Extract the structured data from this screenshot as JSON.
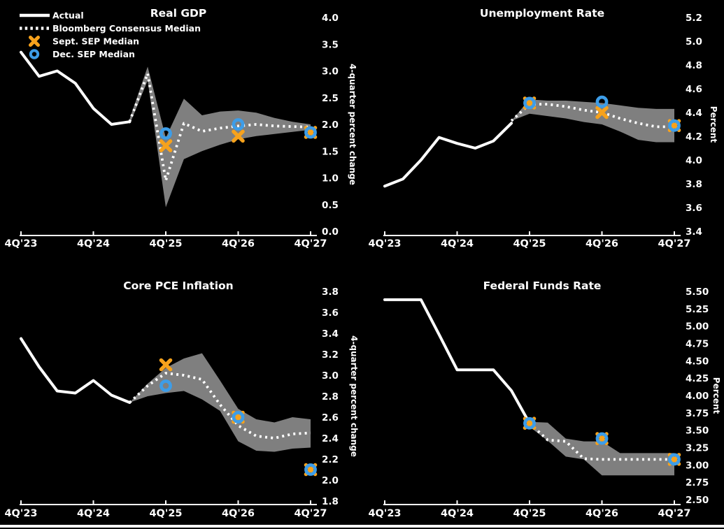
{
  "page": {
    "background": "#000000",
    "border_color": "#fdfdfd"
  },
  "colors": {
    "text": "#ffffff",
    "axis": "#ffffff",
    "actual_line": "#ffffff",
    "consensus_line": "#ffffff",
    "band": "#7f7f7f",
    "sept_marker": "#f7a21c",
    "dec_marker": "#3d9de8"
  },
  "legend": {
    "items": [
      {
        "key": "actual",
        "label": "Actual"
      },
      {
        "key": "consensus",
        "label": "Bloomberg Consensus Median"
      },
      {
        "key": "sept",
        "label": "Sept. SEP Median"
      },
      {
        "key": "dec",
        "label": "Dec. SEP Median"
      }
    ]
  },
  "x_axis": {
    "tick_labels": [
      "4Q'23",
      "4Q'24",
      "4Q'25",
      "4Q'26",
      "4Q'27"
    ],
    "tick_quarters": [
      0,
      4,
      8,
      12,
      16
    ],
    "total_quarters": 16,
    "unit": "quarter index from 4Q'23"
  },
  "chart_data": [
    {
      "type": "line",
      "title": "Real GDP",
      "ylabel": "4-quarter percent change",
      "ylim": [
        0.0,
        4.0
      ],
      "yticks": [
        "4.0",
        "3.5",
        "3.0",
        "2.5",
        "2.0",
        "1.5",
        "1.0",
        "0.5",
        "0.0"
      ],
      "actual": {
        "x": [
          0,
          1,
          2,
          3,
          4,
          5,
          6
        ],
        "y": [
          3.35,
          2.9,
          3.0,
          2.77,
          2.3,
          2.0,
          2.05
        ]
      },
      "consensus": {
        "x": [
          6,
          7,
          8,
          9,
          10,
          11,
          12,
          13,
          14,
          15,
          16
        ],
        "y": [
          2.05,
          2.95,
          0.95,
          2.02,
          1.87,
          1.93,
          1.97,
          2.0,
          1.97,
          1.96,
          1.95
        ]
      },
      "band": {
        "x": [
          6,
          7,
          8,
          9,
          10,
          11,
          12,
          13,
          14,
          15,
          16
        ],
        "upper": [
          2.1,
          3.08,
          1.75,
          2.48,
          2.17,
          2.24,
          2.26,
          2.22,
          2.12,
          2.05,
          2.0
        ],
        "lower": [
          2.0,
          2.82,
          0.45,
          1.35,
          1.5,
          1.62,
          1.72,
          1.78,
          1.82,
          1.86,
          1.9
        ]
      },
      "sept_sep": {
        "x": [
          8,
          12,
          16
        ],
        "y": [
          1.6,
          1.78,
          1.85
        ]
      },
      "dec_sep": {
        "x": [
          8,
          12,
          16
        ],
        "y": [
          1.83,
          2.0,
          1.85
        ]
      }
    },
    {
      "type": "line",
      "title": "Unemployment Rate",
      "ylabel": "Percent",
      "ylim": [
        3.4,
        5.2
      ],
      "yticks": [
        "5.2",
        "5.0",
        "4.8",
        "4.6",
        "4.4",
        "4.2",
        "4.0",
        "3.8",
        "3.6",
        "3.4"
      ],
      "actual": {
        "x": [
          0,
          1,
          2,
          3,
          4,
          5,
          6,
          7
        ],
        "y": [
          3.78,
          3.84,
          4.0,
          4.19,
          4.14,
          4.1,
          4.16,
          4.31
        ]
      },
      "consensus": {
        "x": [
          7,
          8,
          9,
          10,
          11,
          12,
          13,
          14,
          15,
          16
        ],
        "y": [
          4.33,
          4.47,
          4.47,
          4.45,
          4.42,
          4.4,
          4.35,
          4.31,
          4.28,
          4.28
        ]
      },
      "band": {
        "x": [
          7,
          8,
          9,
          10,
          11,
          12,
          13,
          14,
          15,
          16
        ],
        "upper": [
          4.33,
          4.51,
          4.5,
          4.5,
          4.49,
          4.48,
          4.46,
          4.44,
          4.43,
          4.43
        ],
        "lower": [
          4.33,
          4.39,
          4.37,
          4.35,
          4.32,
          4.3,
          4.24,
          4.17,
          4.15,
          4.15
        ]
      },
      "sept_sep": {
        "x": [
          8,
          12,
          16
        ],
        "y": [
          4.48,
          4.4,
          4.29
        ]
      },
      "dec_sep": {
        "x": [
          8,
          12,
          16
        ],
        "y": [
          4.48,
          4.49,
          4.29
        ]
      }
    },
    {
      "type": "line",
      "title": "Core PCE Inflation",
      "ylabel": "4-quarter percent change",
      "ylim": [
        1.8,
        3.8
      ],
      "yticks": [
        "3.8",
        "3.6",
        "3.4",
        "3.2",
        "3.0",
        "2.8",
        "2.6",
        "2.4",
        "2.2",
        "2.0",
        "1.8"
      ],
      "actual": {
        "x": [
          0,
          1,
          2,
          3,
          4,
          5,
          6
        ],
        "y": [
          3.35,
          3.08,
          2.85,
          2.83,
          2.95,
          2.81,
          2.74
        ]
      },
      "consensus": {
        "x": [
          6,
          7,
          8,
          9,
          10,
          11,
          12,
          13,
          14,
          15,
          16
        ],
        "y": [
          2.74,
          2.9,
          3.02,
          3.0,
          2.96,
          2.72,
          2.52,
          2.42,
          2.4,
          2.44,
          2.45
        ]
      },
      "band": {
        "x": [
          6,
          7,
          8,
          9,
          10,
          11,
          12,
          13,
          14,
          15,
          16
        ],
        "upper": [
          2.74,
          2.92,
          3.07,
          3.16,
          3.21,
          2.95,
          2.68,
          2.58,
          2.55,
          2.6,
          2.58
        ],
        "lower": [
          2.74,
          2.8,
          2.83,
          2.85,
          2.77,
          2.66,
          2.37,
          2.28,
          2.27,
          2.3,
          2.31
        ]
      },
      "sept_sep": {
        "x": [
          8,
          12,
          16
        ],
        "y": [
          3.1,
          2.6,
          2.1
        ]
      },
      "dec_sep": {
        "x": [
          8,
          12,
          16
        ],
        "y": [
          2.9,
          2.6,
          2.1
        ]
      }
    },
    {
      "type": "line",
      "title": "Federal Funds Rate",
      "ylabel": "Percent",
      "ylim": [
        2.5,
        5.5
      ],
      "yticks": [
        "5.50",
        "5.25",
        "5.00",
        "4.75",
        "4.50",
        "4.25",
        "4.00",
        "3.75",
        "3.50",
        "3.25",
        "3.00",
        "2.75",
        "2.50"
      ],
      "actual": {
        "x": [
          0,
          1,
          2,
          3,
          4,
          5,
          6,
          7,
          8
        ],
        "y": [
          5.38,
          5.38,
          5.38,
          4.88,
          4.37,
          4.37,
          4.37,
          4.07,
          3.6
        ]
      },
      "consensus": {
        "x": [
          8,
          9,
          10,
          11,
          12,
          13,
          14,
          15,
          16
        ],
        "y": [
          3.6,
          3.36,
          3.34,
          3.09,
          3.08,
          3.08,
          3.08,
          3.08,
          3.08
        ]
      },
      "band": {
        "x": [
          8,
          9,
          10,
          11,
          12,
          13,
          14,
          15,
          16
        ],
        "upper": [
          3.62,
          3.61,
          3.38,
          3.34,
          3.34,
          3.17,
          3.17,
          3.17,
          3.17
        ],
        "lower": [
          3.55,
          3.35,
          3.12,
          3.08,
          2.85,
          2.85,
          2.85,
          2.85,
          2.85
        ]
      },
      "sept_sep": {
        "x": [
          8,
          12,
          16
        ],
        "y": [
          3.6,
          3.38,
          3.08
        ]
      },
      "dec_sep": {
        "x": [
          8,
          12,
          16
        ],
        "y": [
          3.6,
          3.38,
          3.08
        ]
      }
    }
  ]
}
